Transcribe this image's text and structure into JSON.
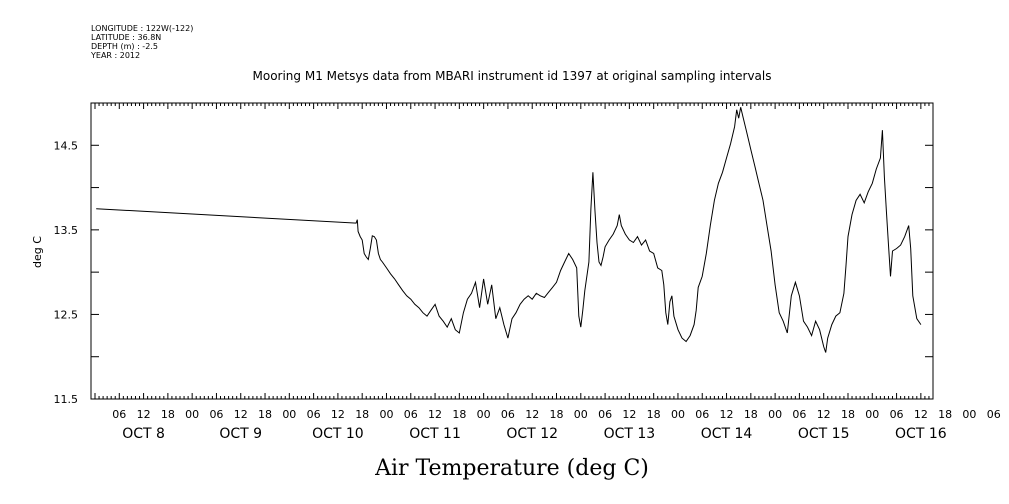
{
  "metadata": {
    "longitude": "LONGITUDE : 122W(-122)",
    "latitude": "LATITUDE : 36.8N",
    "depth": "DEPTH (m) : -2.5",
    "year": "YEAR : 2012"
  },
  "chart_data": {
    "type": "line",
    "title": "Mooring M1 Metsys data from MBARI instrument id 1397 at original sampling intervals",
    "xlabel": "Air Temperature (deg C)",
    "ylabel": "deg C",
    "ylim": [
      11.5,
      15.0
    ],
    "xlim_hours": [
      0,
      204
    ],
    "y_ticks": [
      {
        "value": 11.5,
        "label": "11.5"
      },
      {
        "value": 12.0,
        "label": ""
      },
      {
        "value": 12.5,
        "label": "12.5"
      },
      {
        "value": 13.0,
        "label": ""
      },
      {
        "value": 13.5,
        "label": "13.5"
      },
      {
        "value": 14.0,
        "label": ""
      },
      {
        "value": 14.5,
        "label": "14.5"
      }
    ],
    "x_tick_labels": [
      "06",
      "12",
      "18",
      "00",
      "06",
      "12",
      "18",
      "00",
      "06",
      "12",
      "18",
      "00",
      "06",
      "12",
      "18",
      "00",
      "06",
      "12",
      "18",
      "00",
      "06",
      "12",
      "18",
      "00",
      "06",
      "12",
      "18",
      "00",
      "06",
      "12",
      "18",
      "00",
      "06",
      "12",
      "18",
      "00",
      "06"
    ],
    "day_labels": [
      {
        "label": "OCT  8",
        "day_index": 0
      },
      {
        "label": "OCT  9",
        "day_index": 1
      },
      {
        "label": "OCT 10",
        "day_index": 2
      },
      {
        "label": "OCT 11",
        "day_index": 3
      },
      {
        "label": "OCT 12",
        "day_index": 4
      },
      {
        "label": "OCT 13",
        "day_index": 5
      },
      {
        "label": "OCT 14",
        "day_index": 6
      },
      {
        "label": "OCT 15",
        "day_index": 7
      },
      {
        "label": "OCT 16",
        "day_index": 8
      }
    ],
    "grid": false,
    "series": [
      {
        "color": "#000000",
        "points": [
          [
            0.3,
            13.75
          ],
          [
            64.5,
            13.58
          ],
          [
            64.8,
            13.62
          ],
          [
            65.0,
            13.48
          ],
          [
            65.5,
            13.42
          ],
          [
            66.0,
            13.38
          ],
          [
            66.5,
            13.22
          ],
          [
            67.0,
            13.18
          ],
          [
            67.5,
            13.15
          ],
          [
            68.0,
            13.28
          ],
          [
            68.5,
            13.43
          ],
          [
            69.0,
            13.42
          ],
          [
            69.5,
            13.38
          ],
          [
            70.0,
            13.22
          ],
          [
            70.5,
            13.15
          ],
          [
            71.0,
            13.12
          ],
          [
            72.0,
            13.05
          ],
          [
            73.0,
            12.98
          ],
          [
            74.0,
            12.92
          ],
          [
            75.0,
            12.85
          ],
          [
            76.0,
            12.78
          ],
          [
            77.0,
            12.72
          ],
          [
            78.0,
            12.68
          ],
          [
            79.0,
            12.62
          ],
          [
            80.0,
            12.58
          ],
          [
            81.0,
            12.52
          ],
          [
            82.0,
            12.48
          ],
          [
            83.0,
            12.55
          ],
          [
            84.0,
            12.62
          ],
          [
            85.0,
            12.48
          ],
          [
            86.0,
            12.42
          ],
          [
            87.0,
            12.35
          ],
          [
            88.0,
            12.45
          ],
          [
            89.0,
            12.32
          ],
          [
            90.0,
            12.28
          ],
          [
            91.0,
            12.52
          ],
          [
            92.0,
            12.68
          ],
          [
            93.0,
            12.75
          ],
          [
            94.0,
            12.88
          ],
          [
            95.0,
            12.58
          ],
          [
            96.0,
            12.92
          ],
          [
            97.0,
            12.62
          ],
          [
            98.0,
            12.85
          ],
          [
            99.0,
            12.45
          ],
          [
            100.0,
            12.58
          ],
          [
            101.0,
            12.38
          ],
          [
            102.0,
            12.22
          ],
          [
            103.0,
            12.45
          ],
          [
            104.0,
            12.52
          ],
          [
            105.0,
            12.62
          ],
          [
            106.0,
            12.68
          ],
          [
            107.0,
            12.72
          ],
          [
            108.0,
            12.68
          ],
          [
            109.0,
            12.75
          ],
          [
            110.0,
            12.72
          ],
          [
            111.0,
            12.7
          ],
          [
            112.0,
            12.76
          ],
          [
            113.0,
            12.82
          ],
          [
            114.0,
            12.88
          ],
          [
            115.0,
            13.02
          ],
          [
            116.0,
            13.12
          ],
          [
            117.0,
            13.22
          ],
          [
            118.0,
            13.15
          ],
          [
            119.0,
            13.05
          ],
          [
            119.5,
            12.48
          ],
          [
            120.0,
            12.35
          ],
          [
            120.5,
            12.55
          ],
          [
            121.0,
            12.78
          ],
          [
            122.0,
            13.12
          ],
          [
            122.5,
            13.75
          ],
          [
            123.0,
            14.18
          ],
          [
            123.5,
            13.72
          ],
          [
            124.0,
            13.35
          ],
          [
            124.5,
            13.12
          ],
          [
            125.0,
            13.08
          ],
          [
            125.5,
            13.18
          ],
          [
            126.0,
            13.3
          ],
          [
            127.0,
            13.38
          ],
          [
            128.0,
            13.45
          ],
          [
            129.0,
            13.55
          ],
          [
            129.5,
            13.68
          ],
          [
            130.0,
            13.55
          ],
          [
            131.0,
            13.45
          ],
          [
            132.0,
            13.38
          ],
          [
            133.0,
            13.35
          ],
          [
            134.0,
            13.42
          ],
          [
            135.0,
            13.32
          ],
          [
            136.0,
            13.38
          ],
          [
            137.0,
            13.25
          ],
          [
            138.0,
            13.22
          ],
          [
            139.0,
            13.05
          ],
          [
            140.0,
            13.02
          ],
          [
            140.5,
            12.85
          ],
          [
            141.0,
            12.52
          ],
          [
            141.5,
            12.38
          ],
          [
            142.0,
            12.65
          ],
          [
            142.5,
            12.72
          ],
          [
            143.0,
            12.48
          ],
          [
            144.0,
            12.32
          ],
          [
            145.0,
            12.22
          ],
          [
            146.0,
            12.18
          ],
          [
            147.0,
            12.25
          ],
          [
            148.0,
            12.38
          ],
          [
            148.5,
            12.55
          ],
          [
            149.0,
            12.82
          ],
          [
            150.0,
            12.95
          ],
          [
            151.0,
            13.22
          ],
          [
            152.0,
            13.55
          ],
          [
            153.0,
            13.85
          ],
          [
            154.0,
            14.05
          ],
          [
            155.0,
            14.18
          ],
          [
            156.0,
            14.35
          ],
          [
            157.0,
            14.52
          ],
          [
            158.0,
            14.72
          ],
          [
            158.5,
            14.92
          ],
          [
            159.0,
            14.82
          ],
          [
            159.5,
            14.95
          ],
          [
            160.0,
            14.85
          ],
          [
            161.0,
            14.65
          ],
          [
            162.0,
            14.45
          ],
          [
            163.0,
            14.25
          ],
          [
            164.0,
            14.05
          ],
          [
            165.0,
            13.85
          ],
          [
            166.0,
            13.55
          ],
          [
            167.0,
            13.25
          ],
          [
            168.0,
            12.85
          ],
          [
            169.0,
            12.52
          ],
          [
            170.0,
            12.42
          ],
          [
            171.0,
            12.28
          ],
          [
            172.0,
            12.72
          ],
          [
            173.0,
            12.88
          ],
          [
            174.0,
            12.72
          ],
          [
            175.0,
            12.42
          ],
          [
            176.0,
            12.35
          ],
          [
            177.0,
            12.25
          ],
          [
            178.0,
            12.42
          ],
          [
            179.0,
            12.32
          ],
          [
            180.0,
            12.12
          ],
          [
            180.5,
            12.05
          ],
          [
            181.0,
            12.22
          ],
          [
            182.0,
            12.38
          ],
          [
            183.0,
            12.48
          ],
          [
            184.0,
            12.52
          ],
          [
            185.0,
            12.75
          ],
          [
            185.5,
            13.08
          ],
          [
            186.0,
            13.42
          ],
          [
            187.0,
            13.68
          ],
          [
            188.0,
            13.85
          ],
          [
            189.0,
            13.92
          ],
          [
            190.0,
            13.82
          ],
          [
            191.0,
            13.95
          ],
          [
            192.0,
            14.05
          ],
          [
            193.0,
            14.22
          ],
          [
            194.0,
            14.35
          ],
          [
            194.5,
            14.68
          ],
          [
            195.0,
            14.12
          ],
          [
            195.5,
            13.72
          ],
          [
            196.0,
            13.32
          ],
          [
            196.5,
            12.95
          ],
          [
            197.0,
            13.25
          ],
          [
            198.0,
            13.28
          ],
          [
            199.0,
            13.32
          ],
          [
            200.0,
            13.42
          ],
          [
            201.0,
            13.55
          ],
          [
            201.5,
            13.28
          ],
          [
            202.0,
            12.72
          ],
          [
            203.0,
            12.45
          ],
          [
            204.0,
            12.38
          ]
        ]
      }
    ]
  }
}
